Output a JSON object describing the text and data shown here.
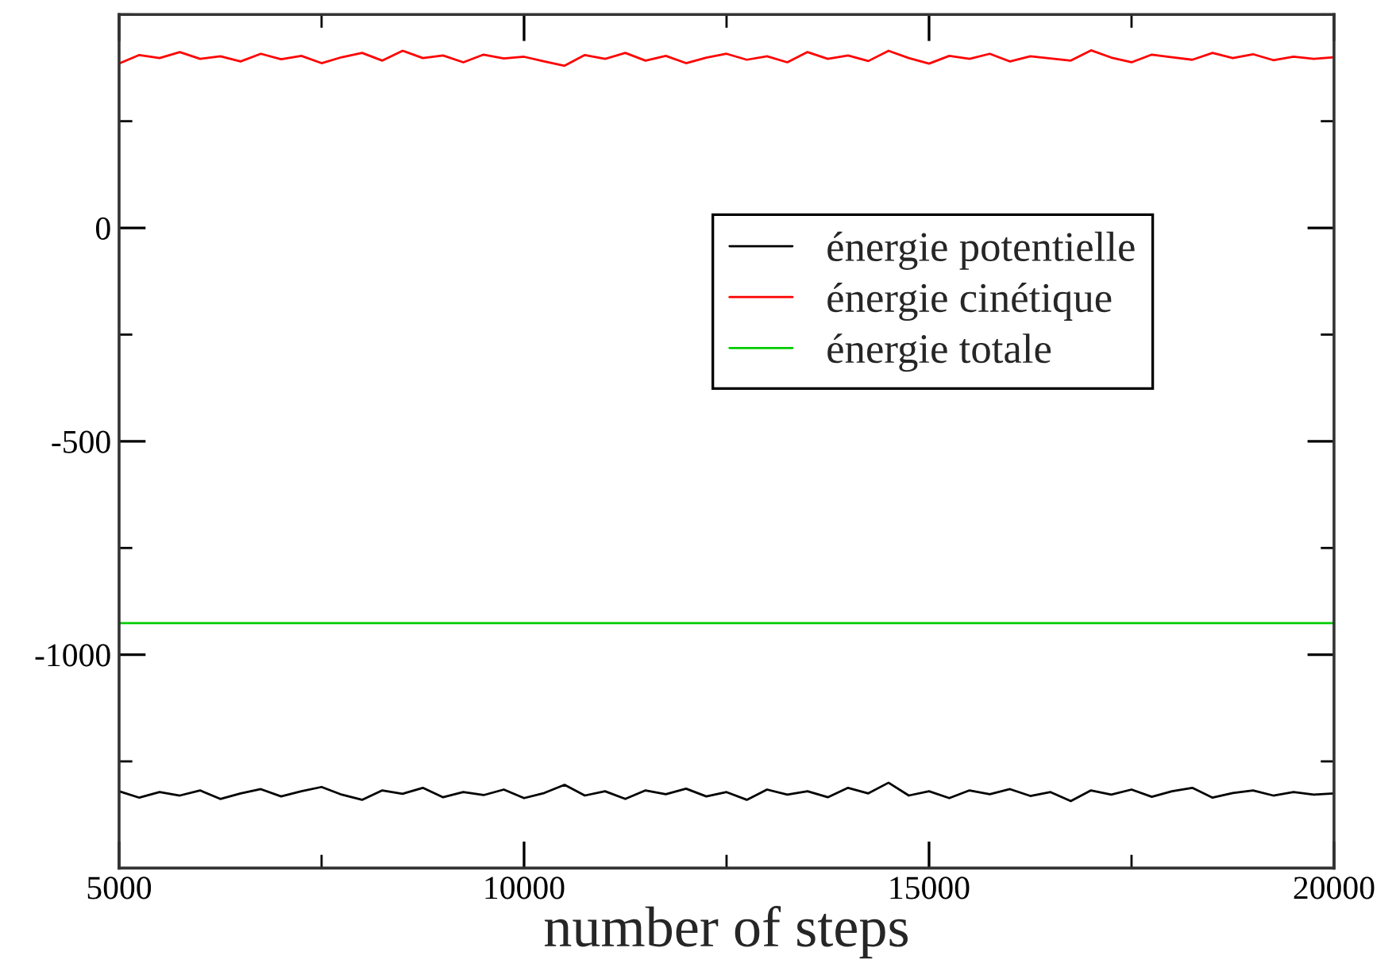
{
  "chart_data": {
    "type": "line",
    "xlabel": "number of steps",
    "xlim": [
      5000,
      20000
    ],
    "ylim": [
      -1500,
      500
    ],
    "xticks": [
      5000,
      {
        "value": 7500,
        "label": null
      },
      10000,
      {
        "value": 12500,
        "label": null
      },
      15000,
      {
        "value": 17500,
        "label": null
      },
      20000
    ],
    "yticks": [
      {
        "value": -1500,
        "label": null
      },
      {
        "value": -1250,
        "label": null
      },
      -1000,
      {
        "value": -750,
        "label": null
      },
      -500,
      {
        "value": -250,
        "label": null
      },
      0,
      {
        "value": 250,
        "label": null
      },
      {
        "value": 500,
        "label": null
      }
    ],
    "legend": "top right",
    "grid": false,
    "marker": "none",
    "line_style": "solid",
    "series": [
      {
        "name": "énergie potentielle",
        "color": "#000000",
        "x": [
          5000,
          5250,
          5500,
          5750,
          6000,
          6250,
          6500,
          6750,
          7000,
          7250,
          7500,
          7750,
          8000,
          8250,
          8500,
          8750,
          9000,
          9250,
          9500,
          9750,
          10000,
          10250,
          10500,
          10750,
          11000,
          11250,
          11500,
          11750,
          12000,
          12250,
          12500,
          12750,
          13000,
          13250,
          13500,
          13750,
          14000,
          14250,
          14500,
          14750,
          15000,
          15250,
          15500,
          15750,
          16000,
          16250,
          16500,
          16750,
          17000,
          17250,
          17500,
          17750,
          18000,
          18250,
          18500,
          18750,
          19000,
          19250,
          19500,
          19750,
          20000
        ],
        "values": [
          -1320,
          -1335,
          -1322,
          -1330,
          -1318,
          -1338,
          -1325,
          -1315,
          -1332,
          -1320,
          -1310,
          -1328,
          -1340,
          -1318,
          -1326,
          -1312,
          -1334,
          -1322,
          -1329,
          -1316,
          -1336,
          -1324,
          -1305,
          -1330,
          -1320,
          -1338,
          -1318,
          -1327,
          -1314,
          -1332,
          -1322,
          -1340,
          -1316,
          -1328,
          -1320,
          -1334,
          -1312,
          -1325,
          -1300,
          -1330,
          -1320,
          -1336,
          -1318,
          -1327,
          -1315,
          -1331,
          -1322,
          -1343,
          -1318,
          -1328,
          -1316,
          -1333,
          -1320,
          -1312,
          -1335,
          -1324,
          -1318,
          -1330,
          -1322,
          -1328,
          -1325
        ]
      },
      {
        "name": "énergie cinétique",
        "color": "#ff0000",
        "x": [
          5000,
          5250,
          5500,
          5750,
          6000,
          6250,
          6500,
          6750,
          7000,
          7250,
          7500,
          7750,
          8000,
          8250,
          8500,
          8750,
          9000,
          9250,
          9500,
          9750,
          10000,
          10250,
          10500,
          10750,
          11000,
          11250,
          11500,
          11750,
          12000,
          12250,
          12500,
          12750,
          13000,
          13250,
          13500,
          13750,
          14000,
          14250,
          14500,
          14750,
          15000,
          15250,
          15500,
          15750,
          16000,
          16250,
          16500,
          16750,
          17000,
          17250,
          17500,
          17750,
          18000,
          18250,
          18500,
          18750,
          19000,
          19250,
          19500,
          19750,
          20000
        ],
        "values": [
          385,
          405,
          398,
          412,
          396,
          402,
          390,
          408,
          395,
          403,
          386,
          400,
          410,
          392,
          415,
          398,
          404,
          388,
          406,
          397,
          401,
          390,
          380,
          405,
          396,
          410,
          392,
          403,
          386,
          399,
          408,
          394,
          402,
          388,
          412,
          396,
          404,
          391,
          415,
          398,
          385,
          403,
          396,
          408,
          390,
          402,
          397,
          392,
          416,
          399,
          388,
          406,
          400,
          394,
          410,
          398,
          407,
          393,
          401,
          396,
          400
        ]
      },
      {
        "name": "énergie totale",
        "color": "#00cc00",
        "x": [
          5000,
          20000
        ],
        "values": [
          -926,
          -926
        ]
      }
    ]
  }
}
